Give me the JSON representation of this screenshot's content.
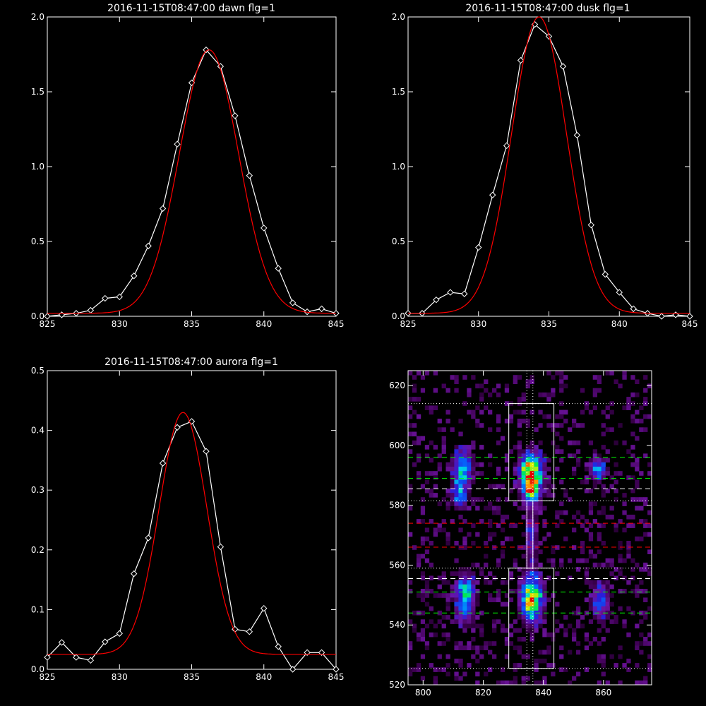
{
  "chart_data": [
    {
      "type": "line",
      "title": "2016-11-15T08:47:00 dawn flg=1",
      "xlim": [
        825,
        845
      ],
      "ylim": [
        0,
        2.0
      ],
      "x_ticks": [
        "825",
        "830",
        "835",
        "840",
        "845"
      ],
      "y_ticks": [
        "0.0",
        "0.5",
        "1.0",
        "1.5",
        "2.0"
      ],
      "grid": false,
      "series": [
        {
          "color": "#ffffff",
          "marker": "diamond",
          "x": [
            825,
            826,
            827,
            828,
            829,
            830,
            831,
            832,
            833,
            834,
            835,
            836,
            837,
            838,
            839,
            840,
            841,
            842,
            843,
            844,
            845
          ],
          "y": [
            0.0,
            0.01,
            0.02,
            0.04,
            0.12,
            0.13,
            0.27,
            0.47,
            0.72,
            1.15,
            1.56,
            1.78,
            1.67,
            1.34,
            0.94,
            0.59,
            0.32,
            0.09,
            0.03,
            0.05,
            0.02
          ]
        },
        {
          "color": "#ff0000",
          "marker": "none",
          "fit": {
            "a": 1.76,
            "mu": 836.2,
            "sigma": 2.05,
            "base": 0.02
          }
        }
      ]
    },
    {
      "type": "line",
      "title": "2016-11-15T08:47:00 dusk flg=1",
      "xlim": [
        825,
        845
      ],
      "ylim": [
        0,
        2.0
      ],
      "x_ticks": [
        "825",
        "830",
        "835",
        "840",
        "845"
      ],
      "y_ticks": [
        "0.0",
        "0.5",
        "1.0",
        "1.5",
        "2.0"
      ],
      "grid": false,
      "series": [
        {
          "color": "#ffffff",
          "marker": "diamond",
          "x": [
            825,
            826,
            827,
            828,
            829,
            830,
            831,
            832,
            833,
            834,
            835,
            836,
            837,
            838,
            839,
            840,
            841,
            842,
            843,
            844,
            845
          ],
          "y": [
            0.02,
            0.02,
            0.11,
            0.16,
            0.15,
            0.46,
            0.81,
            1.14,
            1.71,
            1.95,
            1.87,
            1.67,
            1.21,
            0.61,
            0.28,
            0.16,
            0.05,
            0.02,
            0.0,
            0.01,
            0.0
          ]
        },
        {
          "color": "#ff0000",
          "marker": "none",
          "fit": {
            "a": 1.98,
            "mu": 834.3,
            "sigma": 1.95,
            "base": 0.02
          }
        }
      ]
    },
    {
      "type": "line",
      "title": "2016-11-15T08:47:00 aurora flg=1",
      "xlim": [
        825,
        845
      ],
      "ylim": [
        0,
        0.5
      ],
      "x_ticks": [
        "825",
        "830",
        "835",
        "840",
        "845"
      ],
      "y_ticks": [
        "0.0",
        "0.1",
        "0.2",
        "0.3",
        "0.4",
        "0.5"
      ],
      "grid": false,
      "series": [
        {
          "color": "#ffffff",
          "marker": "diamond",
          "x": [
            825,
            826,
            827,
            828,
            829,
            830,
            831,
            832,
            833,
            834,
            835,
            836,
            837,
            838,
            839,
            840,
            841,
            842,
            843,
            844,
            845
          ],
          "y": [
            0.02,
            0.045,
            0.02,
            0.015,
            0.046,
            0.06,
            0.16,
            0.22,
            0.345,
            0.405,
            0.415,
            0.365,
            0.205,
            0.067,
            0.063,
            0.102,
            0.038,
            0.0,
            0.028,
            0.028,
            0.0
          ]
        },
        {
          "color": "#ff0000",
          "marker": "none",
          "fit": {
            "a": 0.405,
            "mu": 834.4,
            "sigma": 1.65,
            "base": 0.025
          }
        }
      ]
    },
    {
      "type": "heatmap",
      "colormap": "black-purple-blue-cyan-green-yellow-red",
      "xlim": [
        795,
        876
      ],
      "ylim": [
        520,
        625
      ],
      "x_ticks": [
        "800",
        "820",
        "840",
        "860"
      ],
      "y_ticks": [
        "520",
        "540",
        "560",
        "580",
        "600",
        "620"
      ],
      "grid": false,
      "hotspots": [
        {
          "x": 813,
          "y": 592,
          "sx": 2.0,
          "sy": 4.0,
          "amp": 0.62
        },
        {
          "x": 812,
          "y": 583,
          "sx": 1.6,
          "sy": 2.5,
          "amp": 0.45
        },
        {
          "x": 836,
          "y": 592,
          "sx": 2.4,
          "sy": 3.5,
          "amp": 1.0
        },
        {
          "x": 836,
          "y": 585,
          "sx": 2.0,
          "sy": 3.0,
          "amp": 0.75
        },
        {
          "x": 858,
          "y": 592,
          "sx": 1.8,
          "sy": 2.5,
          "amp": 0.45
        },
        {
          "x": 814,
          "y": 549,
          "sx": 2.0,
          "sy": 5.0,
          "amp": 0.6
        },
        {
          "x": 836,
          "y": 549,
          "sx": 2.4,
          "sy": 5.0,
          "amp": 0.85
        },
        {
          "x": 859,
          "y": 548,
          "sx": 2.0,
          "sy": 4.0,
          "amp": 0.4
        },
        {
          "x": 836,
          "y": 570,
          "sx": 1.2,
          "sy": 6.0,
          "amp": 0.28
        }
      ],
      "boxes": [
        {
          "x0": 828.5,
          "x1": 843.5,
          "y0": 581.5,
          "y1": 614,
          "color": "#ffffff"
        },
        {
          "x0": 828.5,
          "x1": 843.5,
          "y0": 525.5,
          "y1": 559,
          "color": "#ffffff"
        },
        {
          "x0": 834.5,
          "x1": 836.5,
          "y0": 559,
          "y1": 581.5,
          "color": "#ffffff"
        }
      ],
      "hlines": [
        {
          "y": 614,
          "color": "#ffffff",
          "style": "dotted"
        },
        {
          "y": 596,
          "color": "#00ff00",
          "style": "dashed"
        },
        {
          "y": 589,
          "color": "#00ff00",
          "style": "dashed"
        },
        {
          "y": 585.5,
          "color": "#ffffff",
          "style": "dashed"
        },
        {
          "y": 581.5,
          "color": "#ffffff",
          "style": "dotted"
        },
        {
          "y": 574,
          "color": "#ff0000",
          "style": "dashed"
        },
        {
          "y": 566,
          "color": "#ff0000",
          "style": "dashed"
        },
        {
          "y": 559,
          "color": "#ffffff",
          "style": "dotted"
        },
        {
          "y": 555.5,
          "color": "#ffffff",
          "style": "dashed"
        },
        {
          "y": 551,
          "color": "#00ff00",
          "style": "dashed"
        },
        {
          "y": 544,
          "color": "#00ff00",
          "style": "dashed"
        },
        {
          "y": 525.5,
          "color": "#ffffff",
          "style": "dotted"
        }
      ],
      "vlines": [
        {
          "x": 834.5,
          "color": "#ffffff",
          "style": "dotted"
        },
        {
          "x": 836.5,
          "color": "#ffffff",
          "style": "dotted"
        }
      ]
    }
  ]
}
